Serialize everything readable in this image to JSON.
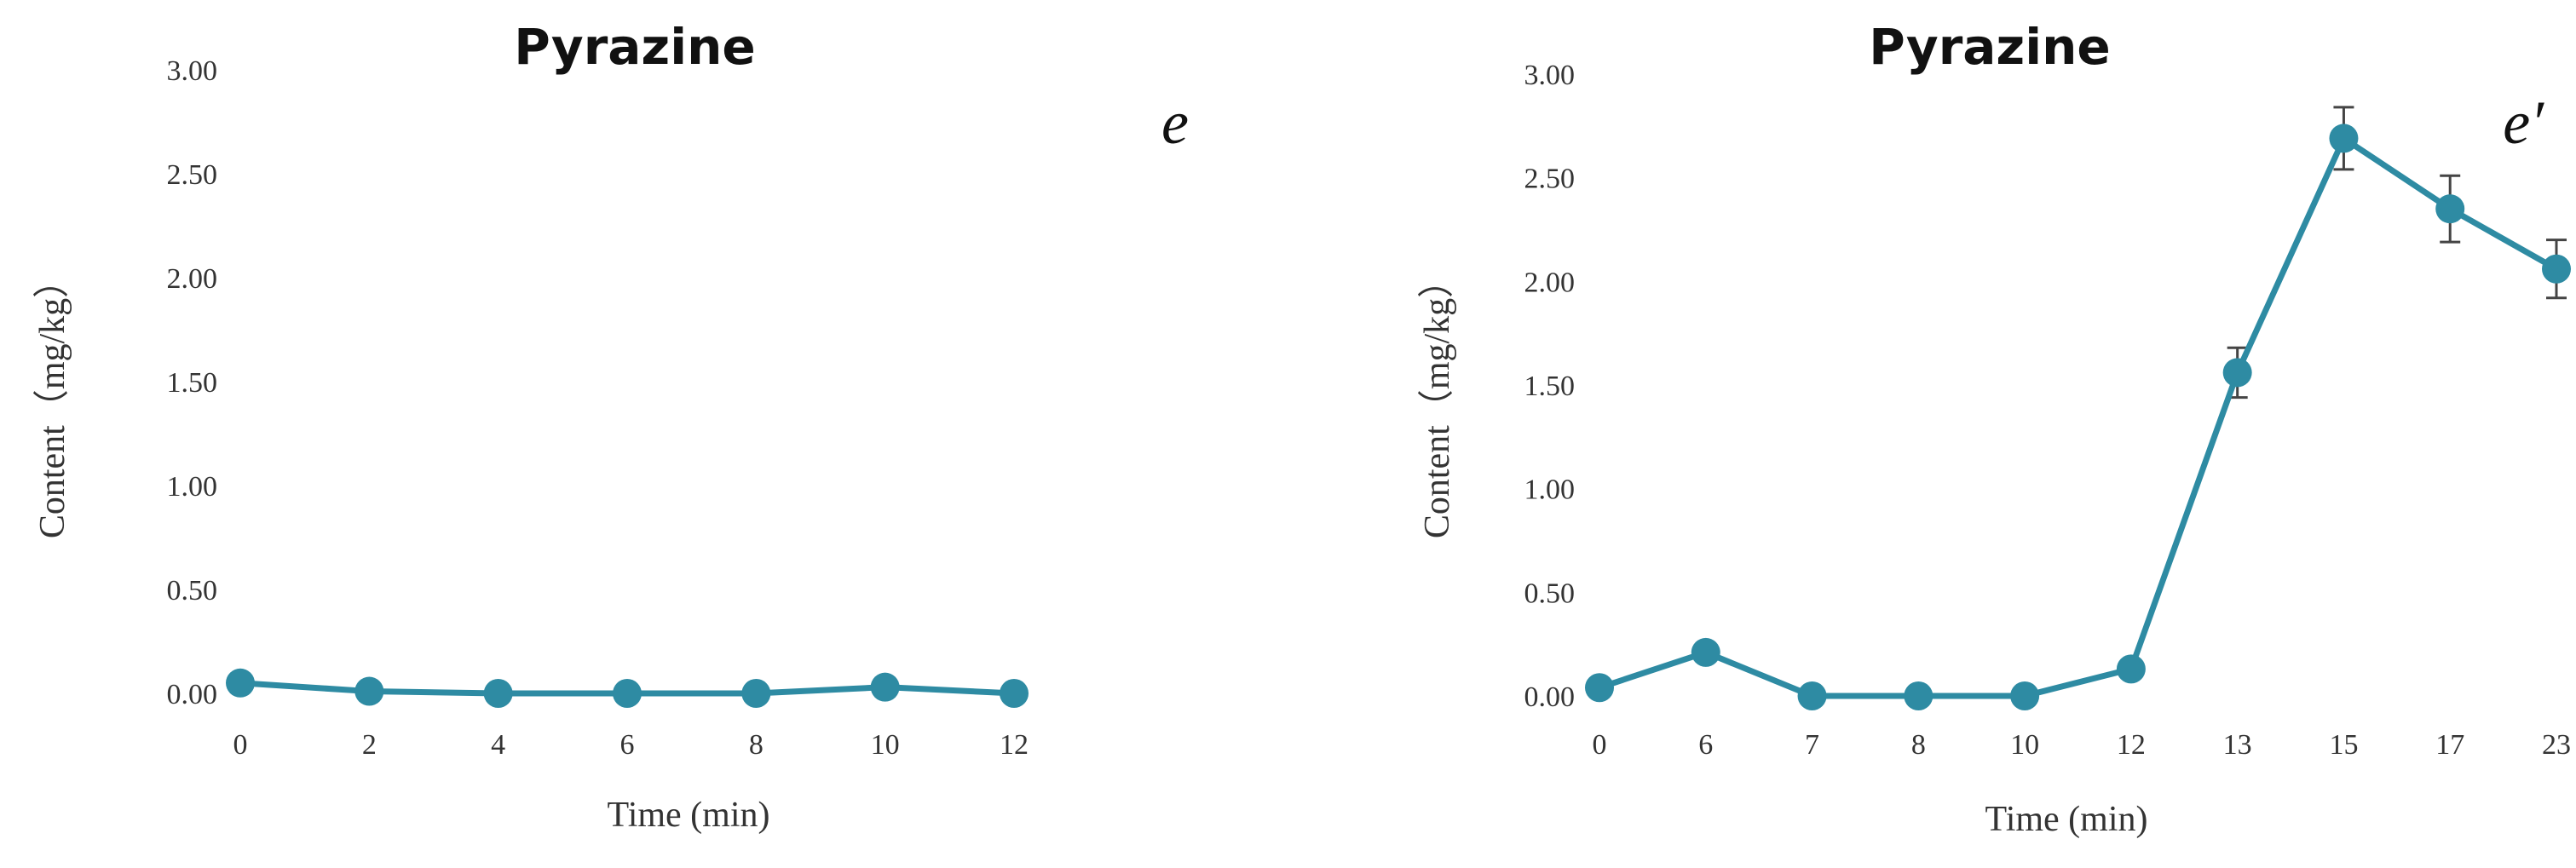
{
  "chart_data": [
    {
      "type": "line",
      "title": "Pyrazine",
      "panel_label": "e",
      "xlabel": "Time (min)",
      "ylabel": "Content（mg/kg）",
      "categories": [
        "0",
        "2",
        "4",
        "6",
        "8",
        "10",
        "12"
      ],
      "series": [
        {
          "values": [
            0.05,
            0.01,
            0.0,
            0.0,
            0.0,
            0.03,
            0.0
          ]
        }
      ],
      "error_bars": [
        0,
        0,
        0,
        0,
        0,
        0,
        0
      ],
      "ylim": [
        0,
        3
      ],
      "yticks": [
        "0.00",
        "0.50",
        "1.00",
        "1.50",
        "2.00",
        "2.50",
        "3.00"
      ],
      "grid": false,
      "color": "#2e8ba3"
    },
    {
      "type": "line",
      "title": "Pyrazine",
      "panel_label": "e′",
      "xlabel": "Time (min)",
      "ylabel": "Content（mg/kg）",
      "categories": [
        "0",
        "6",
        "7",
        "8",
        "10",
        "12",
        "13",
        "15",
        "17",
        "23"
      ],
      "series": [
        {
          "values": [
            0.04,
            0.21,
            0.0,
            0.0,
            0.0,
            0.13,
            1.56,
            2.69,
            2.35,
            2.06
          ]
        }
      ],
      "error_bars": [
        0,
        0,
        0,
        0,
        0,
        0,
        0.12,
        0.15,
        0.16,
        0.14
      ],
      "ylim": [
        0,
        3
      ],
      "yticks": [
        "0.00",
        "0.50",
        "1.00",
        "1.50",
        "2.00",
        "2.50",
        "3.00"
      ],
      "grid": false,
      "color": "#2e8ba3"
    }
  ]
}
